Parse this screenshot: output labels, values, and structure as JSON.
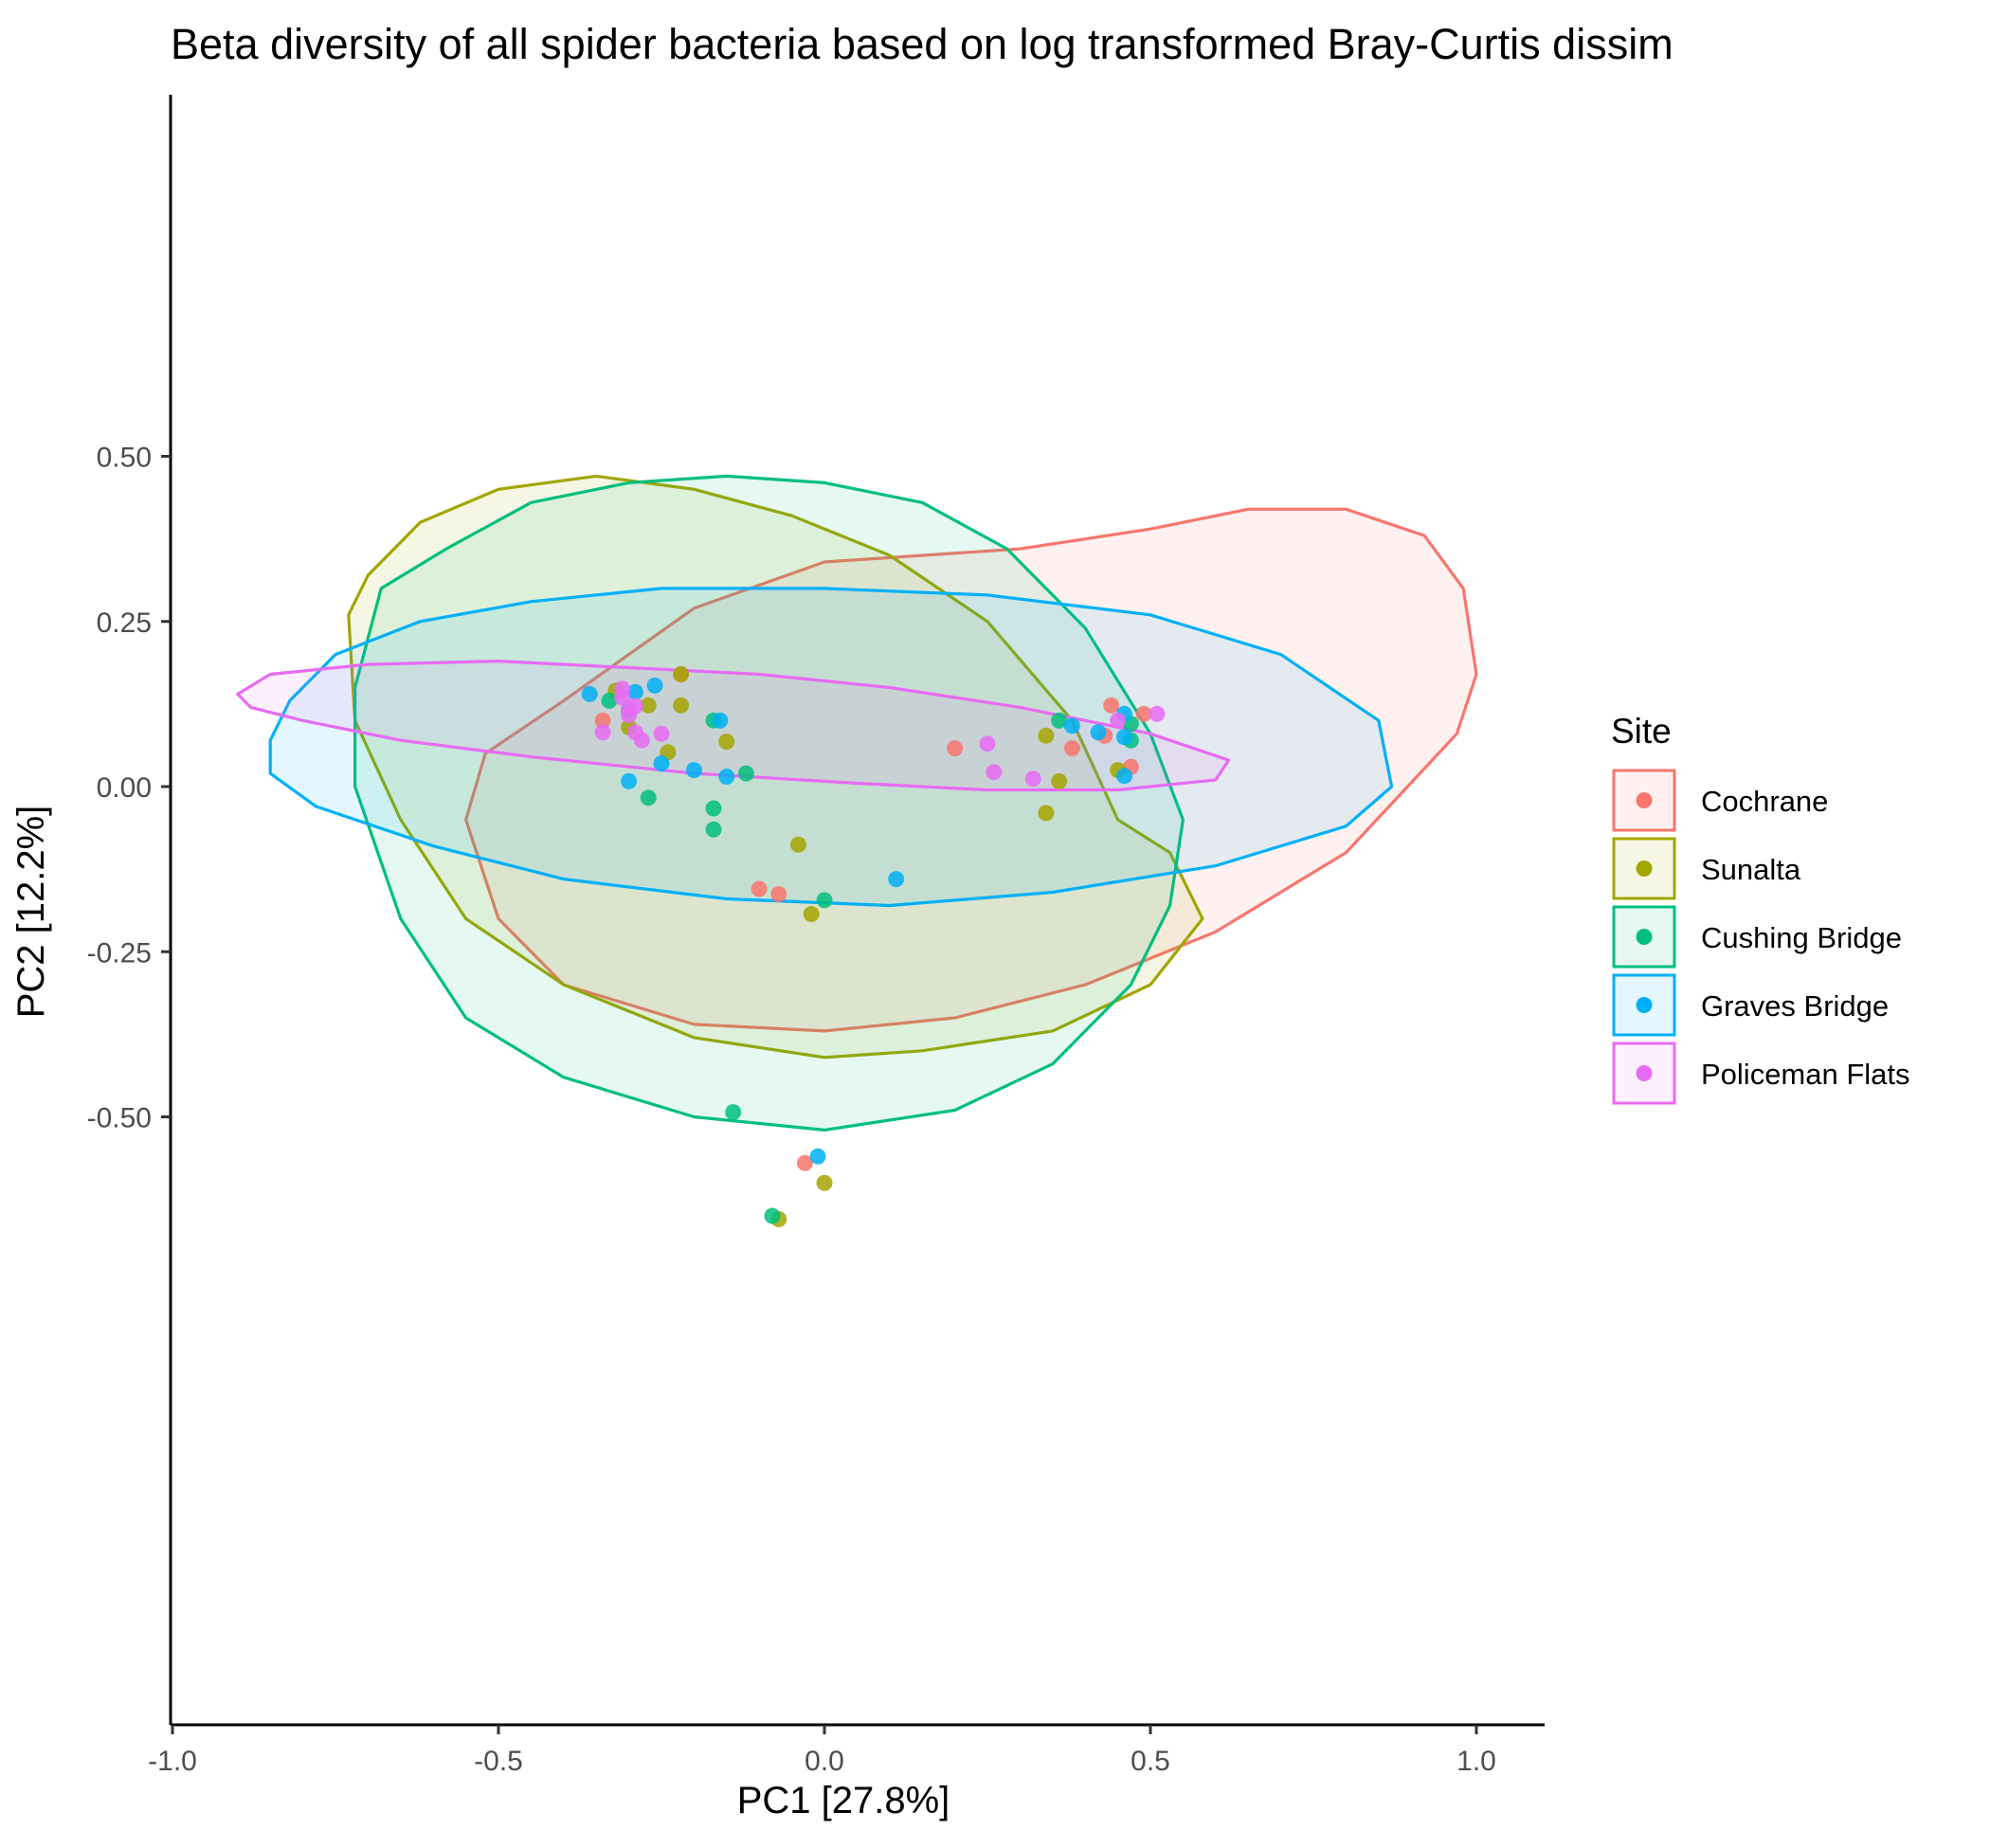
{
  "chart_data": {
    "type": "scatter",
    "title": "Beta diversity of all spider bacteria based on log transformed Bray-Curtis dissim",
    "xlabel": "PC1 [27.8%]",
    "ylabel": "PC2 [12.2%]",
    "xlim": [
      -1.0,
      1.1
    ],
    "ylim": [
      -0.7,
      0.53
    ],
    "xticks": [
      -1.0,
      -0.5,
      0.0,
      0.5,
      1.0
    ],
    "xtick_labels": [
      "-1.0",
      "-0.5",
      "0.0",
      "0.5",
      "1.0"
    ],
    "yticks": [
      0.5,
      0.25,
      0.0,
      -0.25,
      -0.5
    ],
    "ytick_labels": [
      "0.50",
      "0.25",
      "0.00",
      "-0.25",
      "-0.50"
    ],
    "grid": false,
    "legend": {
      "title": "Site",
      "placement": "right"
    },
    "series": [
      {
        "name": "Cochrane",
        "color": "#F8766D",
        "points": [
          [
            -0.34,
            0.1
          ],
          [
            -0.22,
            0.17
          ],
          [
            -0.1,
            -0.155
          ],
          [
            -0.07,
            -0.163
          ],
          [
            0.2,
            0.058
          ],
          [
            0.38,
            0.058
          ],
          [
            0.43,
            0.077
          ],
          [
            0.44,
            0.123
          ],
          [
            0.47,
            0.03
          ],
          [
            0.49,
            0.11
          ],
          [
            -0.03,
            -0.57
          ]
        ],
        "ellipse": [
          [
            -0.55,
            -0.05
          ],
          [
            -0.5,
            -0.2
          ],
          [
            -0.4,
            -0.3
          ],
          [
            -0.2,
            -0.36
          ],
          [
            0.0,
            -0.37
          ],
          [
            0.2,
            -0.35
          ],
          [
            0.4,
            -0.3
          ],
          [
            0.6,
            -0.22
          ],
          [
            0.8,
            -0.1
          ],
          [
            0.97,
            0.08
          ],
          [
            1.0,
            0.17
          ],
          [
            0.98,
            0.3
          ],
          [
            0.92,
            0.38
          ],
          [
            0.8,
            0.42
          ],
          [
            0.65,
            0.42
          ],
          [
            0.5,
            0.39
          ],
          [
            0.3,
            0.36
          ],
          [
            0.0,
            0.34
          ],
          [
            -0.2,
            0.27
          ],
          [
            -0.4,
            0.13
          ],
          [
            -0.52,
            0.05
          ]
        ]
      },
      {
        "name": "Sunalta",
        "color": "#A3A500",
        "points": [
          [
            -0.22,
            0.17
          ],
          [
            -0.32,
            0.145
          ],
          [
            -0.27,
            0.123
          ],
          [
            -0.22,
            0.123
          ],
          [
            -0.3,
            0.09
          ],
          [
            -0.24,
            0.052
          ],
          [
            -0.15,
            0.068
          ],
          [
            0.34,
            0.077
          ],
          [
            0.36,
            0.008
          ],
          [
            0.45,
            0.025
          ],
          [
            0.34,
            -0.04
          ],
          [
            -0.04,
            -0.088
          ],
          [
            -0.02,
            -0.193
          ],
          [
            0.0,
            -0.6
          ],
          [
            -0.07,
            -0.655
          ]
        ],
        "ellipse": [
          [
            -0.73,
            0.26
          ],
          [
            -0.7,
            0.32
          ],
          [
            -0.62,
            0.4
          ],
          [
            -0.5,
            0.45
          ],
          [
            -0.35,
            0.47
          ],
          [
            -0.2,
            0.45
          ],
          [
            -0.05,
            0.41
          ],
          [
            0.1,
            0.35
          ],
          [
            0.25,
            0.25
          ],
          [
            0.38,
            0.1
          ],
          [
            0.45,
            -0.05
          ],
          [
            0.53,
            -0.1
          ],
          [
            0.58,
            -0.2
          ],
          [
            0.5,
            -0.3
          ],
          [
            0.35,
            -0.37
          ],
          [
            0.15,
            -0.4
          ],
          [
            0.0,
            -0.41
          ],
          [
            -0.2,
            -0.38
          ],
          [
            -0.4,
            -0.3
          ],
          [
            -0.55,
            -0.2
          ],
          [
            -0.65,
            -0.05
          ],
          [
            -0.72,
            0.1
          ]
        ]
      },
      {
        "name": "Cushing Bridge",
        "color": "#00BF7D",
        "points": [
          [
            -0.33,
            0.13
          ],
          [
            -0.3,
            0.115
          ],
          [
            -0.17,
            0.1
          ],
          [
            0.36,
            0.1
          ],
          [
            0.47,
            0.095
          ],
          [
            0.47,
            0.07
          ],
          [
            -0.12,
            0.02
          ],
          [
            -0.27,
            -0.017
          ],
          [
            -0.17,
            -0.033
          ],
          [
            -0.17,
            -0.065
          ],
          [
            0.0,
            -0.172
          ],
          [
            -0.14,
            -0.493
          ],
          [
            -0.08,
            -0.65
          ]
        ],
        "ellipse": [
          [
            -0.72,
            0.15
          ],
          [
            -0.68,
            0.3
          ],
          [
            -0.58,
            0.36
          ],
          [
            -0.45,
            0.43
          ],
          [
            -0.3,
            0.46
          ],
          [
            -0.15,
            0.47
          ],
          [
            0.0,
            0.46
          ],
          [
            0.15,
            0.43
          ],
          [
            0.28,
            0.36
          ],
          [
            0.4,
            0.24
          ],
          [
            0.5,
            0.08
          ],
          [
            0.55,
            -0.05
          ],
          [
            0.53,
            -0.18
          ],
          [
            0.47,
            -0.3
          ],
          [
            0.35,
            -0.42
          ],
          [
            0.2,
            -0.49
          ],
          [
            0.0,
            -0.52
          ],
          [
            -0.2,
            -0.5
          ],
          [
            -0.4,
            -0.44
          ],
          [
            -0.55,
            -0.35
          ],
          [
            -0.65,
            -0.2
          ],
          [
            -0.72,
            0.0
          ]
        ]
      },
      {
        "name": "Graves Bridge",
        "color": "#00B0F6",
        "points": [
          [
            -0.36,
            0.14
          ],
          [
            -0.26,
            0.153
          ],
          [
            -0.29,
            0.143
          ],
          [
            -0.16,
            0.1
          ],
          [
            -0.3,
            0.008
          ],
          [
            -0.25,
            0.035
          ],
          [
            -0.2,
            0.025
          ],
          [
            -0.15,
            0.015
          ],
          [
            0.11,
            -0.14
          ],
          [
            0.38,
            0.092
          ],
          [
            0.42,
            0.082
          ],
          [
            0.46,
            0.11
          ],
          [
            0.46,
            0.075
          ],
          [
            0.46,
            0.016
          ],
          [
            -0.01,
            -0.56
          ]
        ],
        "ellipse": [
          [
            -0.85,
            0.07
          ],
          [
            -0.82,
            0.13
          ],
          [
            -0.75,
            0.2
          ],
          [
            -0.62,
            0.25
          ],
          [
            -0.45,
            0.28
          ],
          [
            -0.25,
            0.3
          ],
          [
            0.0,
            0.3
          ],
          [
            0.25,
            0.29
          ],
          [
            0.5,
            0.26
          ],
          [
            0.7,
            0.2
          ],
          [
            0.85,
            0.1
          ],
          [
            0.87,
            0.0
          ],
          [
            0.8,
            -0.06
          ],
          [
            0.6,
            -0.12
          ],
          [
            0.35,
            -0.16
          ],
          [
            0.1,
            -0.18
          ],
          [
            -0.15,
            -0.17
          ],
          [
            -0.4,
            -0.14
          ],
          [
            -0.6,
            -0.09
          ],
          [
            -0.78,
            -0.03
          ],
          [
            -0.85,
            0.02
          ]
        ]
      },
      {
        "name": "Policeman Flats",
        "color": "#E76BF3",
        "points": [
          [
            -0.31,
            0.148
          ],
          [
            -0.31,
            0.135
          ],
          [
            -0.3,
            0.118
          ],
          [
            -0.29,
            0.122
          ],
          [
            -0.3,
            0.108
          ],
          [
            -0.34,
            0.082
          ],
          [
            -0.29,
            0.082
          ],
          [
            -0.25,
            0.08
          ],
          [
            -0.28,
            0.07
          ],
          [
            0.25,
            0.065
          ],
          [
            0.26,
            0.022
          ],
          [
            0.32,
            0.012
          ],
          [
            0.45,
            0.1
          ],
          [
            0.51,
            0.11
          ]
        ],
        "ellipse": [
          [
            -0.9,
            0.14
          ],
          [
            -0.85,
            0.17
          ],
          [
            -0.7,
            0.185
          ],
          [
            -0.5,
            0.19
          ],
          [
            -0.3,
            0.18
          ],
          [
            -0.1,
            0.17
          ],
          [
            0.1,
            0.15
          ],
          [
            0.3,
            0.12
          ],
          [
            0.5,
            0.08
          ],
          [
            0.62,
            0.04
          ],
          [
            0.6,
            0.01
          ],
          [
            0.45,
            -0.005
          ],
          [
            0.25,
            -0.005
          ],
          [
            0.05,
            0.005
          ],
          [
            -0.2,
            0.02
          ],
          [
            -0.45,
            0.045
          ],
          [
            -0.65,
            0.07
          ],
          [
            -0.8,
            0.1
          ],
          [
            -0.88,
            0.12
          ]
        ]
      }
    ]
  }
}
